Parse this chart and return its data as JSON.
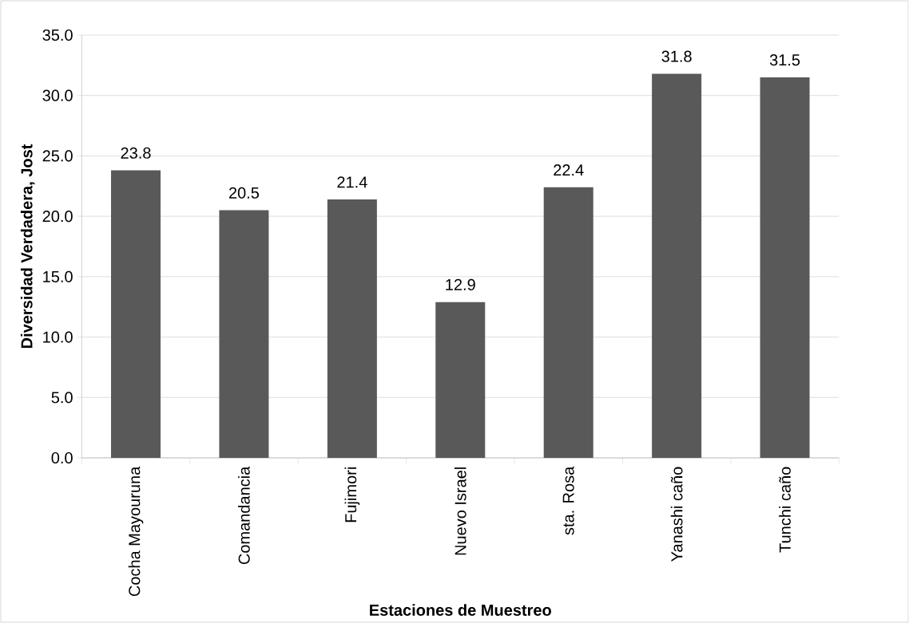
{
  "chart_data": {
    "type": "bar",
    "xlabel": "Estaciones de Muestreo",
    "ylabel": "Diversidad Verdadera, Jost",
    "categories": [
      "Cocha Mayouruna",
      "Comandancia",
      "Fujimori",
      "Nuevo Israel",
      "sta. Rosa",
      "Yanashi caño",
      "Tunchi caño"
    ],
    "values": [
      23.8,
      20.5,
      21.4,
      12.9,
      22.4,
      31.8,
      31.5
    ],
    "value_labels": [
      "23.8",
      "20.5",
      "21.4",
      "12.9",
      "22.4",
      "31.8",
      "31.5"
    ],
    "color": "#595959",
    "ylim": [
      0,
      35
    ],
    "yticks": [
      {
        "value": 0,
        "label": "0.0"
      },
      {
        "value": 5,
        "label": "5.0"
      },
      {
        "value": 10,
        "label": "10.0"
      },
      {
        "value": 15,
        "label": "15.0"
      },
      {
        "value": 20,
        "label": "20.0"
      },
      {
        "value": 25,
        "label": "25.0"
      },
      {
        "value": 30,
        "label": "30.0"
      },
      {
        "value": 35,
        "label": "35.0"
      }
    ],
    "grid": "y"
  }
}
